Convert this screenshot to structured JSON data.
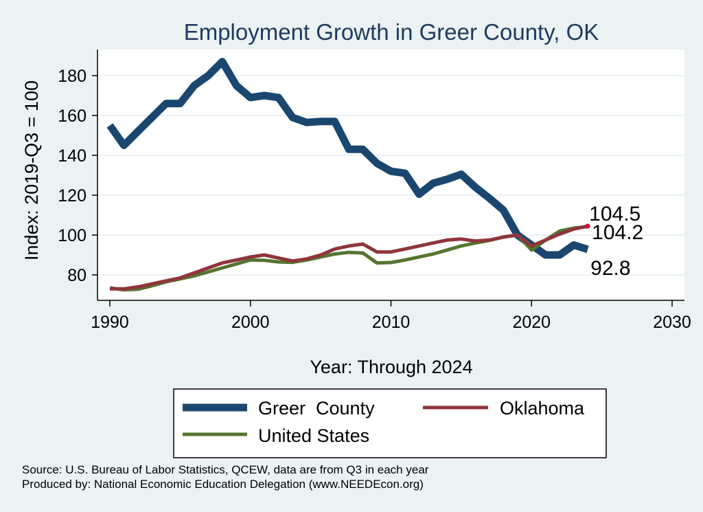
{
  "chart_data": {
    "type": "line",
    "title": "Employment Growth in Greer County, OK",
    "xlabel": "Year: Through 2024",
    "ylabel": "Index: 2019-Q3 = 100",
    "xlim": [
      1990,
      2030
    ],
    "ylim": [
      65,
      190
    ],
    "xticks": [
      1990,
      2000,
      2010,
      2020,
      2030
    ],
    "yticks": [
      80,
      100,
      120,
      140,
      160,
      180
    ],
    "x": [
      1990,
      1991,
      1992,
      1993,
      1994,
      1995,
      1996,
      1997,
      1998,
      1999,
      2000,
      2001,
      2002,
      2003,
      2004,
      2005,
      2006,
      2007,
      2008,
      2009,
      2010,
      2011,
      2012,
      2013,
      2014,
      2015,
      2016,
      2017,
      2018,
      2019,
      2020,
      2021,
      2022,
      2023,
      2024
    ],
    "series": [
      {
        "name": "Greer  County",
        "color": "#1a476f",
        "values": [
          155,
          145,
          152,
          159,
          166,
          166,
          175,
          180,
          187,
          175,
          169,
          170,
          169,
          159,
          156.5,
          157,
          157,
          143,
          143,
          136,
          132,
          131,
          120.5,
          126,
          128,
          130.5,
          124,
          118.5,
          112.5,
          100,
          95,
          90,
          90,
          95,
          92.8
        ],
        "end_label": "92.8"
      },
      {
        "name": "Oklahoma",
        "color": "#90353b",
        "values": [
          73,
          73,
          74,
          75.5,
          77,
          78.5,
          81,
          83.5,
          86,
          87.5,
          89,
          90,
          88.5,
          87,
          88,
          90,
          93,
          94.5,
          95.5,
          91.5,
          91.5,
          93,
          94.5,
          96,
          97.5,
          98,
          97,
          97.5,
          99,
          100,
          94.5,
          97.5,
          100.5,
          103,
          104.5
        ],
        "end_label": "104.5"
      },
      {
        "name": "United States",
        "color": "#55752f",
        "values": [
          73.5,
          72.5,
          72.8,
          74.5,
          76.5,
          78,
          79.5,
          81.5,
          83.5,
          85.5,
          87.5,
          87.3,
          86.5,
          86.3,
          87.5,
          89,
          90.5,
          91.3,
          91,
          86,
          86.2,
          87.5,
          89,
          90.5,
          92.5,
          94.5,
          96,
          97.3,
          99,
          100,
          92.5,
          97.5,
          102,
          103.5,
          104.2
        ],
        "end_label": "104.2"
      }
    ],
    "legend": {
      "position": "bottom"
    }
  },
  "source": {
    "line1": "Source: U.S. Bureau of Labor Statistics, QCEW, data are from Q3 in each year",
    "line2": "Produced by: National Economic Education Delegation (www.NEEDEcon.org)"
  }
}
